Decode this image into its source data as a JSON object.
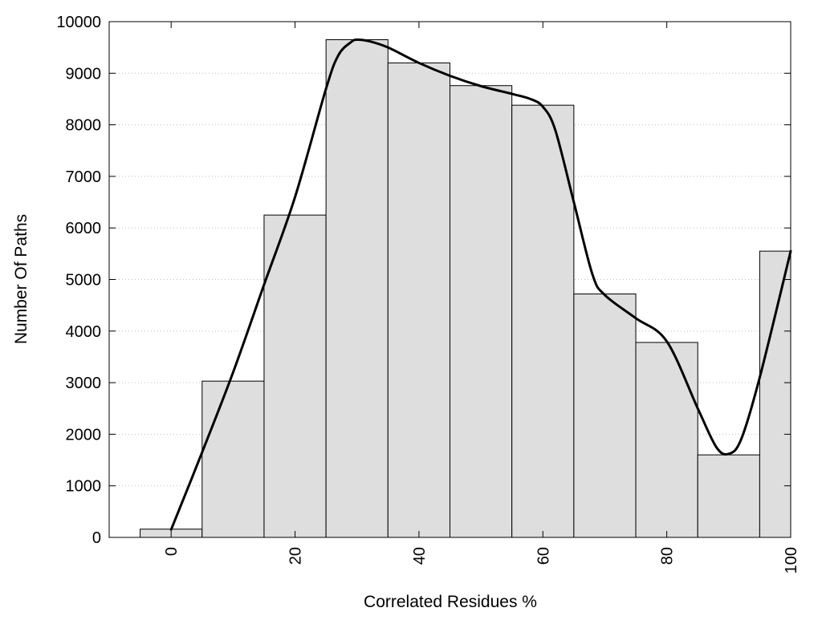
{
  "chart_data": {
    "type": "bar",
    "title": "",
    "xlabel": "Correlated Residues %",
    "ylabel": "Number Of Paths",
    "xlim": [
      -10,
      100
    ],
    "ylim": [
      0,
      10000
    ],
    "xticks": [
      0,
      20,
      40,
      60,
      80,
      100
    ],
    "yticks": [
      0,
      1000,
      2000,
      3000,
      4000,
      5000,
      6000,
      7000,
      8000,
      9000,
      10000
    ],
    "grid": "horizontal-dotted",
    "bin_width": 10,
    "categories": [
      0,
      10,
      20,
      30,
      40,
      50,
      60,
      70,
      80,
      90,
      100
    ],
    "values": [
      160,
      3030,
      6250,
      9650,
      9200,
      8760,
      8380,
      4720,
      3780,
      1600,
      5550
    ],
    "bar_color": "#dedede",
    "curve": {
      "x": [
        0,
        5,
        10,
        15,
        20,
        25,
        27,
        29,
        30,
        32,
        35,
        40,
        45,
        50,
        55,
        58,
        60,
        62,
        65,
        68,
        70,
        75,
        80,
        85,
        88,
        90,
        92,
        95,
        100
      ],
      "y": [
        150,
        1650,
        3200,
        4900,
        6600,
        8700,
        9350,
        9600,
        9650,
        9620,
        9500,
        9200,
        8950,
        8750,
        8600,
        8500,
        8350,
        7900,
        6500,
        5100,
        4700,
        4250,
        3800,
        2500,
        1750,
        1620,
        1900,
        3100,
        5550
      ],
      "color": "#000000"
    }
  }
}
